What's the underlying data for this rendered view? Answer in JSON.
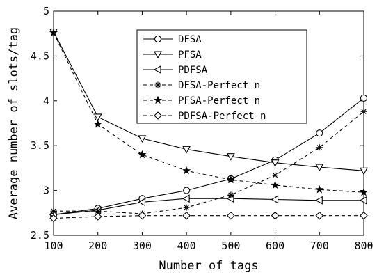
{
  "chart_data": {
    "type": "line",
    "xlabel": "Number of tags",
    "ylabel": "Average number of slots/tag",
    "xlim": [
      100,
      800
    ],
    "ylim": [
      2.5,
      5
    ],
    "x": [
      100,
      200,
      300,
      400,
      500,
      600,
      700,
      800
    ],
    "x_ticks": [
      "100",
      "200",
      "300",
      "400",
      "500",
      "600",
      "700",
      "800"
    ],
    "y_ticks": [
      "2.5",
      "3",
      "3.5",
      "4",
      "4.5",
      "5"
    ],
    "x_tick_values": [
      100,
      200,
      300,
      400,
      500,
      600,
      700,
      800
    ],
    "y_tick_values": [
      2.5,
      3,
      3.5,
      4,
      4.5,
      5
    ],
    "grid": false,
    "legend_position": "top-center",
    "series": [
      {
        "name": "DFSA",
        "marker": "circle",
        "dash": "solid",
        "values": [
          2.73,
          2.8,
          2.91,
          3.0,
          3.13,
          3.34,
          3.64,
          4.03
        ]
      },
      {
        "name": "PFSA",
        "marker": "triangle-down",
        "dash": "solid",
        "values": [
          4.77,
          3.82,
          3.58,
          3.46,
          3.38,
          3.31,
          3.26,
          3.22
        ]
      },
      {
        "name": "PDFSA",
        "marker": "triangle-left",
        "dash": "solid",
        "values": [
          2.73,
          2.78,
          2.87,
          2.91,
          2.91,
          2.9,
          2.89,
          2.89
        ]
      },
      {
        "name": "DFSA-Perfect n",
        "marker": "asterisk",
        "dash": "dashed",
        "values": [
          2.77,
          2.77,
          2.74,
          2.81,
          2.95,
          3.17,
          3.48,
          3.88
        ]
      },
      {
        "name": "PFSA-Perfect n",
        "marker": "star",
        "dash": "dashed",
        "values": [
          4.76,
          3.74,
          3.4,
          3.22,
          3.12,
          3.06,
          3.01,
          2.98
        ]
      },
      {
        "name": "PDFSA-Perfect n",
        "marker": "diamond",
        "dash": "dashed",
        "values": [
          2.69,
          2.71,
          2.72,
          2.72,
          2.72,
          2.72,
          2.72,
          2.72
        ]
      }
    ]
  }
}
